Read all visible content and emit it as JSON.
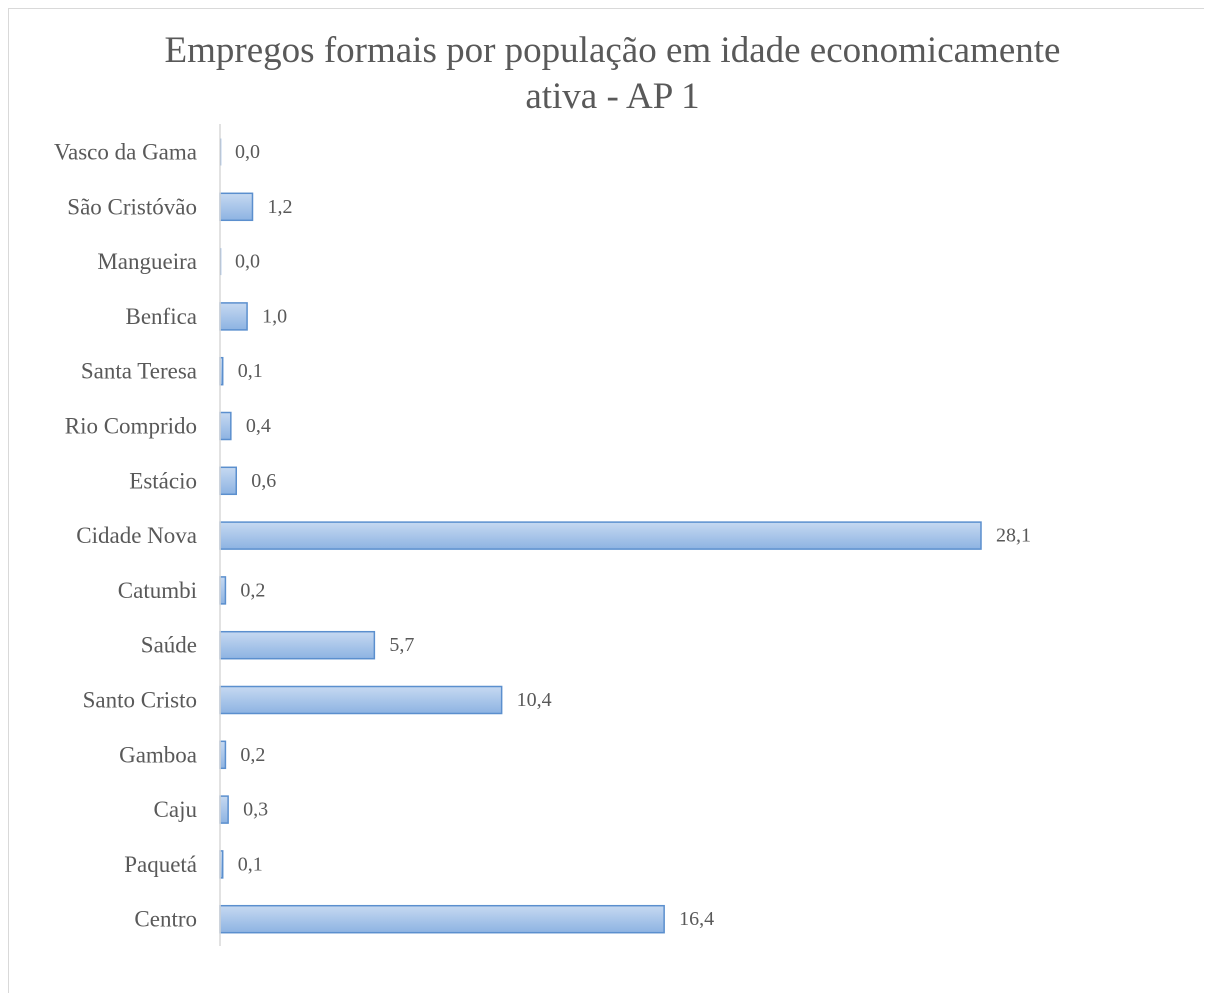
{
  "chart_data": {
    "type": "bar",
    "orientation": "horizontal",
    "title": "Empregos formais por população em idade economicamente ativa - AP 1",
    "categories": [
      "Vasco da Gama",
      "São Cristóvão",
      "Mangueira",
      "Benfica",
      "Santa Teresa",
      "Rio Comprido",
      "Estácio",
      "Cidade Nova",
      "Catumbi",
      "Saúde",
      "Santo Cristo",
      "Gamboa",
      "Caju",
      "Paquetá",
      "Centro"
    ],
    "values": [
      0.0,
      1.2,
      0.0,
      1.0,
      0.1,
      0.4,
      0.6,
      28.1,
      0.2,
      5.7,
      10.4,
      0.2,
      0.3,
      0.1,
      16.4
    ],
    "value_labels": [
      "0,0",
      "1,2",
      "0,0",
      "1,0",
      "0,1",
      "0,4",
      "0,6",
      "28,1",
      "0,2",
      "5,7",
      "10,4",
      "0,2",
      "0,3",
      "0,1",
      "16,4"
    ],
    "xlabel": "",
    "ylabel": "",
    "xlim": [
      0,
      28.1
    ],
    "grid": false,
    "legend": "none",
    "colors": {
      "bar_fill_top": "#c6d9f1",
      "bar_fill_bottom": "#8db3e2",
      "bar_stroke": "#5b8fce",
      "axis": "#d9d9d9",
      "text": "#595959"
    }
  }
}
